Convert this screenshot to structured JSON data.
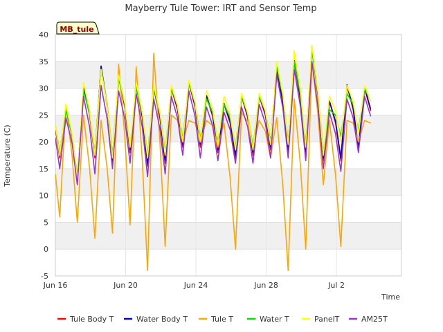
{
  "chart_data": {
    "type": "line",
    "title": "Mayberry Tule Tower: IRT and Sensor Temp",
    "xlabel": "Time",
    "ylabel": "Temperature (C)",
    "badge": "MB_tule",
    "xlim": [
      0,
      19.7
    ],
    "ylim": [
      -5,
      40
    ],
    "yticks": [
      -5,
      0,
      5,
      10,
      15,
      20,
      25,
      30,
      35,
      40
    ],
    "xticks": [
      {
        "value": 0,
        "label": "Jun 16"
      },
      {
        "value": 4,
        "label": "Jun 20"
      },
      {
        "value": 8,
        "label": "Jun 24"
      },
      {
        "value": 12,
        "label": "Jun 28"
      },
      {
        "value": 16,
        "label": "Jul 2"
      }
    ],
    "days": [
      0,
      1,
      2,
      3,
      4,
      5,
      6,
      7,
      8,
      9,
      10,
      11,
      12,
      13,
      14,
      15,
      16,
      17
    ],
    "series": [
      {
        "name": "Tule Body T",
        "color": "#ff0000",
        "lows": [
          17,
          12.5,
          17,
          16,
          18,
          15.5,
          16,
          19,
          19,
          18,
          17,
          17.5,
          18.5,
          18,
          17.5,
          16.5,
          16.5,
          18.5
        ],
        "highs": [
          26.5,
          30,
          34,
          32,
          30.5,
          30,
          30,
          31,
          28.5,
          27,
          28.5,
          28.5,
          33.5,
          35,
          37.5,
          27.5,
          30.5,
          30
        ]
      },
      {
        "name": "Water Body T",
        "color": "#0000cc",
        "lows": [
          17.5,
          13,
          17.5,
          16.5,
          18.5,
          16,
          16.5,
          19.5,
          19.5,
          18.5,
          17.5,
          18,
          19,
          18.5,
          18,
          17,
          17,
          19
        ]
      },
      {
        "name": "Tule T",
        "color": "#ffa500",
        "lows": [
          6,
          5,
          2,
          3,
          4.5,
          -4,
          0.5,
          20,
          20,
          19,
          0,
          19,
          17,
          -4,
          0,
          12,
          0.5,
          20
        ],
        "highs": [
          27,
          25,
          24,
          34.5,
          34,
          36.5,
          25,
          24,
          24,
          23.5,
          25.5,
          24,
          24.5,
          28,
          35,
          24,
          24,
          24
        ]
      },
      {
        "name": "Water T",
        "color": "#00dd00",
        "lows": [
          18,
          13.5,
          18,
          17.5,
          19,
          17.5,
          18,
          20.5,
          20.5,
          20,
          19,
          19,
          20,
          20,
          19.5,
          18,
          21,
          22
        ],
        "highs": [
          26,
          29.5,
          33.5,
          32,
          30,
          30,
          30,
          31,
          28,
          27,
          28.5,
          28.5,
          34,
          35,
          37,
          26,
          29,
          30
        ]
      },
      {
        "name": "PanelT",
        "color": "#ffff00",
        "lows": [
          17.5,
          13,
          17.5,
          17,
          19,
          17,
          17.5,
          20,
          20,
          19.5,
          18.5,
          18.5,
          19.5,
          19.5,
          19,
          17.5,
          20,
          21.5
        ],
        "highs": [
          27,
          31,
          33.5,
          32.5,
          31,
          30.5,
          30.5,
          31.5,
          29.5,
          28.5,
          29,
          29,
          35,
          37,
          38,
          28.5,
          30.5,
          30.5
        ]
      },
      {
        "name": "AM25T",
        "color": "#9933cc",
        "lows": [
          15,
          12,
          14,
          15,
          16,
          13.5,
          14,
          17.5,
          17,
          16.5,
          16,
          16,
          17,
          17,
          16.5,
          15,
          14.5,
          18
        ],
        "highs": [
          24.5,
          28.5,
          30.5,
          29.5,
          29,
          28,
          28.5,
          29.5,
          26.5,
          25.5,
          26.5,
          27,
          32.5,
          33.5,
          35,
          25.5,
          28,
          28.5
        ]
      }
    ]
  }
}
